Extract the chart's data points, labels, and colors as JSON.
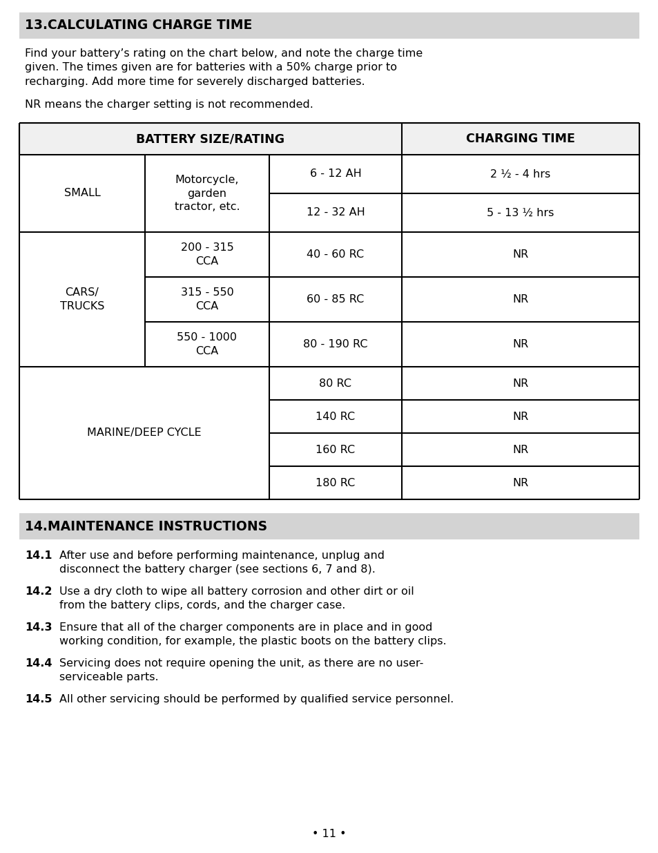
{
  "bg_color": "#ffffff",
  "section13_header": "13.CALCULATING CHARGE TIME",
  "section13_header_bg": "#d3d3d3",
  "section13_para1": "Find your battery’s rating on the chart below, and note the charge time\ngiven. The times given are for batteries with a 50% charge prior to\nrecharging. Add more time for severely discharged batteries.",
  "section13_para2": "NR means the charger setting is not recommended.",
  "table_header_col1": "BATTERY SIZE/RATING",
  "table_header_col2": "CHARGING TIME",
  "section14_header": "14.MAINTENANCE INSTRUCTIONS",
  "section14_header_bg": "#d3d3d3",
  "section14_items": [
    [
      "14.1",
      "After use and before performing maintenance, unplug and\ndisconnect the battery charger (see sections 6, 7 and 8)."
    ],
    [
      "14.2",
      "Use a dry cloth to wipe all battery corrosion and other dirt or oil\nfrom the battery clips, cords, and the charger case."
    ],
    [
      "14.3",
      "Ensure that all of the charger components are in place and in good\nworking condition, for example, the plastic boots on the battery clips."
    ],
    [
      "14.4",
      "Servicing does not require opening the unit, as there are no user-\nserviceable parts."
    ],
    [
      "14.5",
      "All other servicing should be performed by qualified service personnel."
    ]
  ],
  "page_number": "• 11 •",
  "text_color": "#000000",
  "lw": 1.5
}
